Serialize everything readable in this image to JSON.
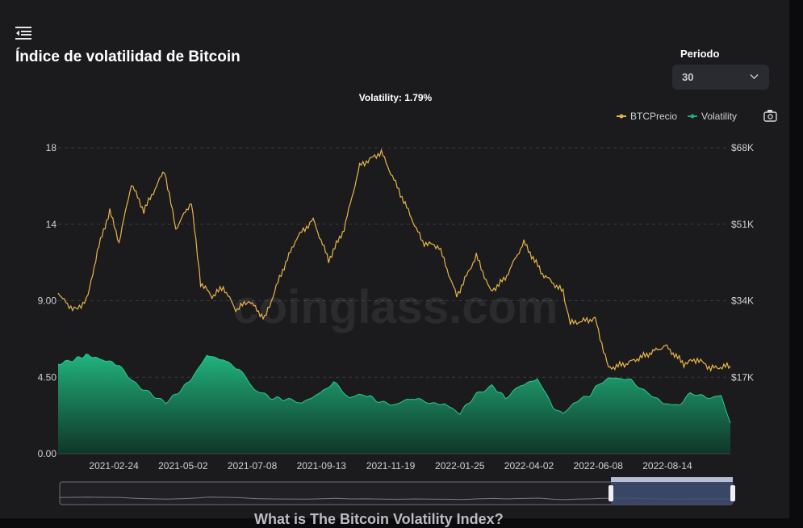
{
  "page": {
    "title": "Índice de volatilidad de Bitcoin",
    "period_label": "Periodo",
    "period_value": "30",
    "footer_heading": "What is The Bitcoin Volatility Index?"
  },
  "colors": {
    "price": "#e9b548",
    "volatility": "#1fae79",
    "background": "#1b1b1e"
  },
  "chart_data": {
    "type": "line",
    "subtitle": "Volatility: 1.79%",
    "watermark": "coinglass.com",
    "legend": [
      "BTCPrecio",
      "Volatility"
    ],
    "legend_position": "top-right",
    "x_ticks": [
      "2021-02-24",
      "2021-05-02",
      "2021-07-08",
      "2021-09-13",
      "2021-11-19",
      "2022-01-25",
      "2022-04-02",
      "2022-06-08",
      "2022-08-14"
    ],
    "x_range": [
      "2021-01-01",
      "2022-10-14"
    ],
    "y_left": {
      "ticks": [
        "0.00",
        "4.50",
        "9.00",
        "14",
        "18"
      ],
      "range": [
        0,
        18
      ]
    },
    "y_right": {
      "ticks": [
        "$17K",
        "$34K",
        "$51K",
        "$68K"
      ],
      "range": [
        0,
        68000
      ]
    },
    "grid": true,
    "series": [
      {
        "name": "BTCPrecio",
        "axis": "right",
        "points": [
          [
            "2021-01-01",
            36000
          ],
          [
            "2021-01-10",
            33000
          ],
          [
            "2021-01-20",
            32000
          ],
          [
            "2021-01-30",
            35000
          ],
          [
            "2021-02-08",
            45000
          ],
          [
            "2021-02-20",
            54000
          ],
          [
            "2021-03-01",
            47000
          ],
          [
            "2021-03-13",
            60000
          ],
          [
            "2021-03-25",
            54000
          ],
          [
            "2021-04-14",
            63000
          ],
          [
            "2021-04-25",
            50000
          ],
          [
            "2021-05-10",
            56000
          ],
          [
            "2021-05-19",
            38000
          ],
          [
            "2021-05-30",
            35000
          ],
          [
            "2021-06-10",
            37000
          ],
          [
            "2021-06-22",
            32000
          ],
          [
            "2021-07-05",
            34000
          ],
          [
            "2021-07-20",
            30000
          ],
          [
            "2021-08-05",
            40000
          ],
          [
            "2021-08-20",
            48000
          ],
          [
            "2021-09-05",
            52000
          ],
          [
            "2021-09-20",
            43000
          ],
          [
            "2021-10-05",
            50000
          ],
          [
            "2021-10-20",
            64000
          ],
          [
            "2021-11-10",
            67000
          ],
          [
            "2021-11-30",
            57000
          ],
          [
            "2021-12-20",
            47000
          ],
          [
            "2022-01-05",
            46000
          ],
          [
            "2022-01-22",
            35000
          ],
          [
            "2022-02-10",
            44000
          ],
          [
            "2022-02-24",
            36000
          ],
          [
            "2022-03-10",
            39000
          ],
          [
            "2022-03-28",
            47000
          ],
          [
            "2022-04-15",
            40000
          ],
          [
            "2022-05-05",
            36000
          ],
          [
            "2022-05-12",
            29000
          ],
          [
            "2022-06-05",
            30000
          ],
          [
            "2022-06-18",
            19000
          ],
          [
            "2022-07-05",
            20000
          ],
          [
            "2022-07-25",
            22000
          ],
          [
            "2022-08-12",
            24000
          ],
          [
            "2022-08-30",
            20000
          ],
          [
            "2022-09-12",
            21000
          ],
          [
            "2022-09-25",
            19000
          ],
          [
            "2022-10-14",
            19500
          ]
        ]
      },
      {
        "name": "Volatility",
        "axis": "left",
        "points": [
          [
            "2021-01-01",
            5.3
          ],
          [
            "2021-01-15",
            5.5
          ],
          [
            "2021-01-28",
            5.8
          ],
          [
            "2021-02-10",
            5.6
          ],
          [
            "2021-02-20",
            5.4
          ],
          [
            "2021-03-01",
            5.2
          ],
          [
            "2021-03-15",
            4.2
          ],
          [
            "2021-04-01",
            3.5
          ],
          [
            "2021-04-15",
            3.0
          ],
          [
            "2021-05-01",
            3.8
          ],
          [
            "2021-05-15",
            4.8
          ],
          [
            "2021-05-25",
            5.8
          ],
          [
            "2021-06-10",
            5.5
          ],
          [
            "2021-06-25",
            5.0
          ],
          [
            "2021-07-10",
            3.8
          ],
          [
            "2021-07-25",
            3.3
          ],
          [
            "2021-08-10",
            3.2
          ],
          [
            "2021-08-25",
            3.0
          ],
          [
            "2021-09-10",
            3.5
          ],
          [
            "2021-09-25",
            4.2
          ],
          [
            "2021-10-10",
            3.3
          ],
          [
            "2021-10-25",
            3.5
          ],
          [
            "2021-11-10",
            3.0
          ],
          [
            "2021-11-25",
            2.9
          ],
          [
            "2021-12-10",
            3.3
          ],
          [
            "2021-12-25",
            3.0
          ],
          [
            "2022-01-10",
            2.9
          ],
          [
            "2022-01-25",
            2.4
          ],
          [
            "2022-02-10",
            3.5
          ],
          [
            "2022-02-25",
            4.0
          ],
          [
            "2022-03-10",
            3.3
          ],
          [
            "2022-03-25",
            4.0
          ],
          [
            "2022-04-10",
            4.4
          ],
          [
            "2022-04-25",
            2.8
          ],
          [
            "2022-05-05",
            2.3
          ],
          [
            "2022-05-15",
            3.0
          ],
          [
            "2022-05-30",
            3.4
          ],
          [
            "2022-06-10",
            4.2
          ],
          [
            "2022-06-25",
            4.5
          ],
          [
            "2022-07-10",
            4.3
          ],
          [
            "2022-07-25",
            3.6
          ],
          [
            "2022-08-10",
            3.0
          ],
          [
            "2022-08-25",
            2.8
          ],
          [
            "2022-09-05",
            3.6
          ],
          [
            "2022-09-20",
            3.3
          ],
          [
            "2022-10-05",
            3.4
          ],
          [
            "2022-10-14",
            1.8
          ]
        ]
      }
    ]
  }
}
